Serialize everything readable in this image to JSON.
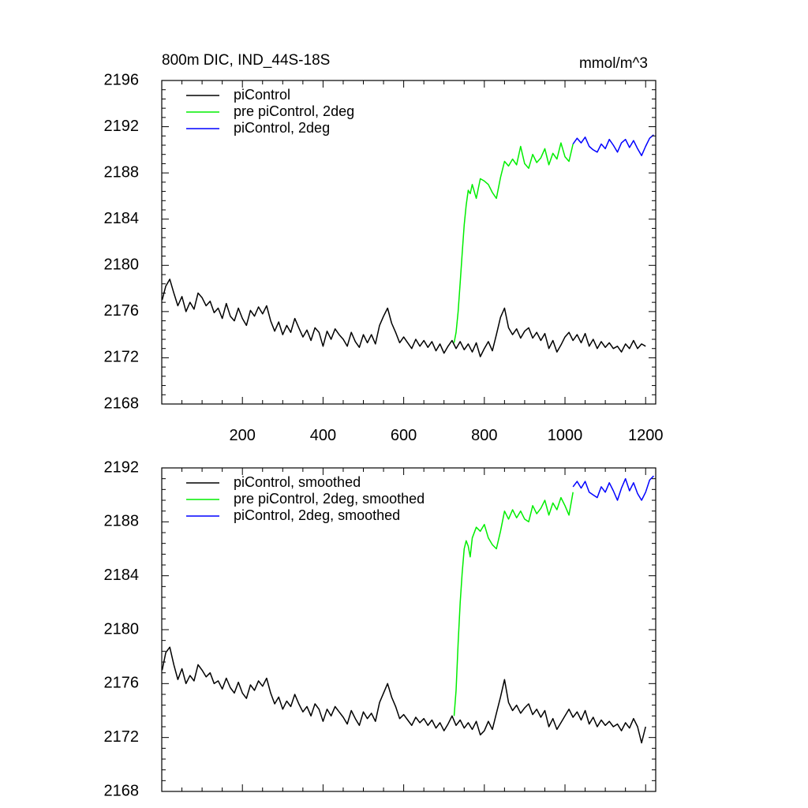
{
  "chart_data": [
    {
      "type": "line",
      "title": "800m DIC, IND_44S-18S",
      "units": "mmol/m^3",
      "xlim": [
        0,
        1225
      ],
      "ylim": [
        2168,
        2196
      ],
      "yticks": [
        2168,
        2172,
        2176,
        2180,
        2184,
        2188,
        2192,
        2196
      ],
      "xticks": [
        200,
        400,
        600,
        800,
        1000,
        1200
      ],
      "xtick_labels": [
        "200",
        "400",
        "600",
        "800",
        "1000",
        "1200"
      ],
      "grid": false,
      "legend_position": "top-left",
      "series": [
        {
          "name": "piControl",
          "color": "#000000",
          "x": [
            1,
            10,
            20,
            30,
            40,
            50,
            60,
            70,
            80,
            90,
            100,
            110,
            120,
            130,
            140,
            150,
            160,
            170,
            180,
            190,
            200,
            210,
            220,
            230,
            240,
            250,
            260,
            270,
            280,
            290,
            300,
            310,
            320,
            330,
            340,
            350,
            360,
            370,
            380,
            390,
            400,
            410,
            420,
            430,
            440,
            450,
            460,
            470,
            480,
            490,
            500,
            510,
            520,
            530,
            540,
            550,
            560,
            570,
            580,
            590,
            600,
            610,
            620,
            630,
            640,
            650,
            660,
            670,
            680,
            690,
            700,
            710,
            720,
            730,
            740,
            750,
            760,
            770,
            780,
            790,
            800,
            810,
            820,
            830,
            840,
            850,
            860,
            870,
            880,
            890,
            900,
            910,
            920,
            930,
            940,
            950,
            960,
            970,
            980,
            990,
            1000,
            1010,
            1020,
            1030,
            1040,
            1050,
            1060,
            1070,
            1080,
            1090,
            1100,
            1110,
            1120,
            1130,
            1140,
            1150,
            1160,
            1170,
            1180,
            1190,
            1200
          ],
          "y": [
            2177.0,
            2178.2,
            2178.8,
            2177.6,
            2176.5,
            2177.3,
            2176.0,
            2176.8,
            2176.2,
            2177.6,
            2177.2,
            2176.5,
            2176.9,
            2175.9,
            2176.3,
            2175.4,
            2176.7,
            2175.6,
            2175.2,
            2176.3,
            2175.4,
            2174.8,
            2176.1,
            2175.6,
            2176.4,
            2175.8,
            2176.5,
            2175.2,
            2174.3,
            2175.1,
            2174.0,
            2174.8,
            2174.2,
            2175.4,
            2174.6,
            2173.8,
            2174.4,
            2173.5,
            2174.6,
            2174.2,
            2173.0,
            2174.3,
            2173.6,
            2174.5,
            2174.0,
            2173.6,
            2173.0,
            2174.2,
            2173.4,
            2172.9,
            2174.0,
            2173.3,
            2174.0,
            2173.2,
            2174.8,
            2175.6,
            2176.3,
            2175.0,
            2174.2,
            2173.3,
            2173.8,
            2173.3,
            2172.8,
            2173.6,
            2173.0,
            2173.5,
            2172.9,
            2173.4,
            2172.6,
            2173.2,
            2172.4,
            2173.0,
            2173.5,
            2172.8,
            2173.4,
            2172.7,
            2173.2,
            2172.5,
            2173.3,
            2172.1,
            2172.8,
            2173.4,
            2172.6,
            2174.0,
            2175.5,
            2176.3,
            2174.6,
            2174.0,
            2174.5,
            2173.7,
            2174.3,
            2174.6,
            2173.7,
            2174.2,
            2173.5,
            2174.1,
            2172.8,
            2173.5,
            2172.5,
            2173.1,
            2173.8,
            2174.2,
            2173.5,
            2174.0,
            2173.3,
            2174.1,
            2173.0,
            2173.6,
            2172.8,
            2173.4,
            2172.9,
            2173.3,
            2172.8,
            2173.0,
            2172.5,
            2173.2,
            2172.8,
            2173.5,
            2172.8,
            2173.2,
            2173.0
          ]
        },
        {
          "name": "pre piControl, 2deg",
          "color": "#00ee00",
          "x": [
            725,
            730,
            735,
            740,
            745,
            750,
            755,
            760,
            765,
            770,
            780,
            790,
            800,
            810,
            820,
            830,
            840,
            850,
            860,
            870,
            880,
            890,
            900,
            910,
            920,
            930,
            940,
            950,
            960,
            970,
            980,
            990,
            1000,
            1010,
            1020
          ],
          "y": [
            2173.3,
            2174.2,
            2176.0,
            2178.5,
            2181.0,
            2183.5,
            2185.2,
            2186.5,
            2186.2,
            2187.0,
            2185.8,
            2187.5,
            2187.3,
            2187.0,
            2186.3,
            2185.8,
            2187.6,
            2189.0,
            2188.6,
            2189.2,
            2188.7,
            2190.3,
            2188.8,
            2188.4,
            2189.6,
            2188.9,
            2189.3,
            2190.1,
            2188.7,
            2189.7,
            2189.2,
            2190.6,
            2189.4,
            2189.0,
            2190.5
          ]
        },
        {
          "name": "piControl, 2deg",
          "color": "#0000ff",
          "x": [
            1020,
            1030,
            1040,
            1050,
            1060,
            1070,
            1080,
            1090,
            1100,
            1110,
            1120,
            1130,
            1140,
            1150,
            1160,
            1170,
            1180,
            1190,
            1200,
            1210,
            1220
          ],
          "y": [
            2190.5,
            2191.0,
            2190.6,
            2191.1,
            2190.3,
            2190.0,
            2189.8,
            2190.5,
            2190.1,
            2190.9,
            2190.4,
            2189.8,
            2190.6,
            2190.9,
            2190.2,
            2190.8,
            2190.1,
            2189.5,
            2190.3,
            2191.0,
            2191.3
          ]
        }
      ]
    },
    {
      "type": "line",
      "xlim": [
        0,
        1225
      ],
      "ylim": [
        2168,
        2192
      ],
      "yticks": [
        2168,
        2172,
        2176,
        2180,
        2184,
        2188,
        2192
      ],
      "xticks": [
        200,
        400,
        600,
        800,
        1000,
        1200
      ],
      "grid": false,
      "legend_position": "top-left",
      "series": [
        {
          "name": "piControl, smoothed",
          "color": "#000000",
          "x": [
            1,
            10,
            20,
            30,
            40,
            50,
            60,
            70,
            80,
            90,
            100,
            110,
            120,
            130,
            140,
            150,
            160,
            170,
            180,
            190,
            200,
            210,
            220,
            230,
            240,
            250,
            260,
            270,
            280,
            290,
            300,
            310,
            320,
            330,
            340,
            350,
            360,
            370,
            380,
            390,
            400,
            410,
            420,
            430,
            440,
            450,
            460,
            470,
            480,
            490,
            500,
            510,
            520,
            530,
            540,
            550,
            560,
            570,
            580,
            590,
            600,
            610,
            620,
            630,
            640,
            650,
            660,
            670,
            680,
            690,
            700,
            710,
            720,
            730,
            740,
            750,
            760,
            770,
            780,
            790,
            800,
            810,
            820,
            830,
            840,
            850,
            860,
            870,
            880,
            890,
            900,
            910,
            920,
            930,
            940,
            950,
            960,
            970,
            980,
            990,
            1000,
            1010,
            1020,
            1030,
            1040,
            1050,
            1060,
            1070,
            1080,
            1090,
            1100,
            1110,
            1120,
            1130,
            1140,
            1150,
            1160,
            1170,
            1180,
            1190,
            1200
          ],
          "y": [
            2177.0,
            2178.3,
            2178.7,
            2177.4,
            2176.3,
            2177.1,
            2176.0,
            2176.6,
            2176.2,
            2177.4,
            2177.0,
            2176.5,
            2176.8,
            2176.0,
            2176.2,
            2175.6,
            2176.4,
            2175.7,
            2175.3,
            2176.1,
            2175.3,
            2174.9,
            2175.9,
            2175.5,
            2176.2,
            2175.8,
            2176.4,
            2175.3,
            2174.5,
            2175.0,
            2174.1,
            2174.7,
            2174.3,
            2175.2,
            2174.5,
            2173.9,
            2174.3,
            2173.6,
            2174.5,
            2174.1,
            2173.2,
            2174.1,
            2173.6,
            2174.3,
            2173.9,
            2173.5,
            2173.0,
            2174.0,
            2173.4,
            2172.9,
            2173.9,
            2173.4,
            2173.8,
            2173.2,
            2174.6,
            2175.3,
            2176.0,
            2175.0,
            2174.3,
            2173.4,
            2173.7,
            2173.3,
            2172.9,
            2173.5,
            2173.1,
            2173.4,
            2172.9,
            2173.3,
            2172.7,
            2173.1,
            2172.5,
            2173.0,
            2173.6,
            2172.9,
            2173.3,
            2172.7,
            2173.1,
            2172.6,
            2173.2,
            2172.2,
            2172.5,
            2173.2,
            2172.6,
            2173.8,
            2175.0,
            2176.3,
            2174.6,
            2174.0,
            2174.4,
            2173.8,
            2174.2,
            2174.5,
            2173.7,
            2174.1,
            2173.5,
            2174.0,
            2172.8,
            2173.4,
            2172.6,
            2173.1,
            2173.6,
            2174.1,
            2173.5,
            2173.9,
            2173.3,
            2174.0,
            2173.0,
            2173.5,
            2172.8,
            2173.3,
            2172.9,
            2173.2,
            2172.8,
            2173.0,
            2172.5,
            2173.1,
            2172.7,
            2173.4,
            2172.8,
            2171.6,
            2172.8
          ]
        },
        {
          "name": "pre piControl, 2deg, smoothed",
          "color": "#00ee00",
          "x": [
            725,
            730,
            735,
            740,
            745,
            750,
            755,
            760,
            765,
            770,
            780,
            790,
            800,
            810,
            820,
            830,
            840,
            850,
            860,
            870,
            880,
            890,
            900,
            910,
            920,
            930,
            940,
            950,
            960,
            970,
            980,
            990,
            1000,
            1010,
            1020
          ],
          "y": [
            2173.6,
            2175.5,
            2179.0,
            2182.0,
            2184.2,
            2186.0,
            2186.6,
            2186.2,
            2185.4,
            2186.8,
            2187.6,
            2187.3,
            2187.8,
            2186.8,
            2186.3,
            2186.0,
            2187.3,
            2188.8,
            2188.2,
            2188.9,
            2188.3,
            2188.8,
            2188.2,
            2188.0,
            2189.2,
            2188.6,
            2189.0,
            2189.6,
            2188.5,
            2189.4,
            2188.9,
            2189.8,
            2189.2,
            2188.5,
            2190.2
          ]
        },
        {
          "name": "piControl, 2deg, smoothed",
          "color": "#0000ff",
          "x": [
            1020,
            1030,
            1040,
            1050,
            1060,
            1070,
            1080,
            1090,
            1100,
            1110,
            1120,
            1130,
            1140,
            1150,
            1160,
            1170,
            1180,
            1190,
            1200,
            1210,
            1220
          ],
          "y": [
            2190.6,
            2191.0,
            2190.5,
            2191.0,
            2190.2,
            2190.0,
            2189.8,
            2190.6,
            2190.2,
            2190.9,
            2190.3,
            2189.6,
            2190.5,
            2191.2,
            2190.3,
            2190.9,
            2190.1,
            2189.6,
            2190.2,
            2191.1,
            2191.4
          ]
        }
      ]
    }
  ]
}
